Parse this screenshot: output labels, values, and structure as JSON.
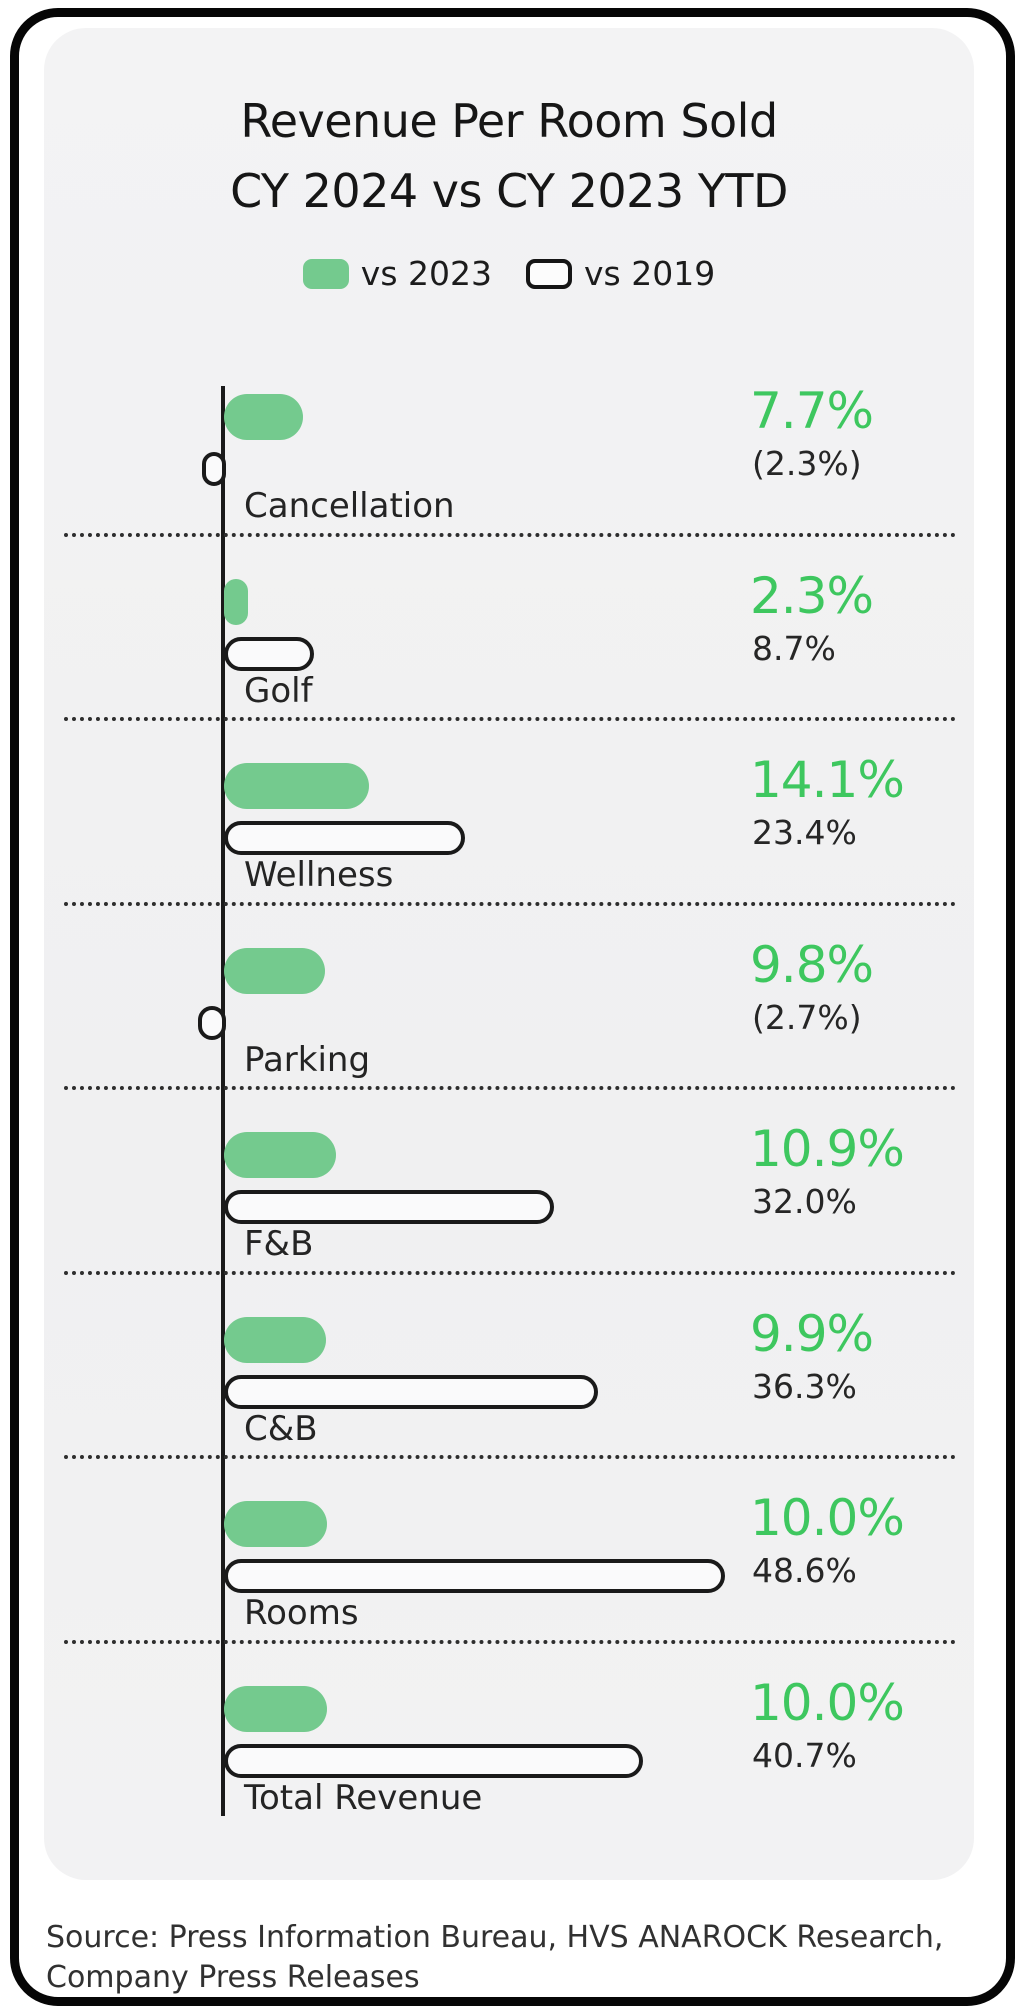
{
  "title": {
    "line1": "Revenue Per Room Sold",
    "line2": "CY 2024 vs CY 2023 YTD"
  },
  "legend": {
    "item1": {
      "label": "vs 2023",
      "swatch": "green-filled-rounded-rect",
      "color": "#74ca8e"
    },
    "item2": {
      "label": "vs 2019",
      "swatch": "white-outlined-rounded-rect",
      "color": "#ffffff"
    }
  },
  "colors": {
    "bar_green": "#74ca8e",
    "value_green_text": "#3ec75f",
    "bar_outline": "#1a1a1a",
    "card_background": "#f1f1f2",
    "frame_border": "#060606",
    "dark_text": "#1c1c1c"
  },
  "chart_data": {
    "type": "bar",
    "orientation": "horizontal",
    "title": "Revenue Per Room Sold CY 2024 vs CY 2023 YTD",
    "legend_position": "top-center",
    "baseline": 0,
    "note": "negative values shown in parentheses and drawn left of the zero axis",
    "categories": [
      "Cancellation",
      "Golf",
      "Wellness",
      "Parking",
      "F&B",
      "C&B",
      "Rooms",
      "Total Revenue"
    ],
    "series": [
      {
        "name": "vs 2023",
        "style": "green-filled",
        "values": [
          7.7,
          2.3,
          14.1,
          9.8,
          10.9,
          9.9,
          10.0,
          10.0
        ],
        "labels": [
          "7.7%",
          "2.3%",
          "14.1%",
          "9.8%",
          "10.9%",
          "9.9%",
          "10.0%",
          "10.0%"
        ]
      },
      {
        "name": "vs 2019",
        "style": "white-outlined",
        "values": [
          -2.3,
          8.7,
          23.4,
          -2.7,
          32.0,
          36.3,
          48.6,
          40.7
        ],
        "labels": [
          "(2.3%)",
          "8.7%",
          "23.4%",
          "(2.7%)",
          "32.0%",
          "36.3%",
          "48.6%",
          "40.7%"
        ]
      }
    ]
  },
  "source": {
    "line1": "Source: Press Information Bureau, HVS ANAROCK Research,",
    "line2": "Company Press Releases"
  }
}
